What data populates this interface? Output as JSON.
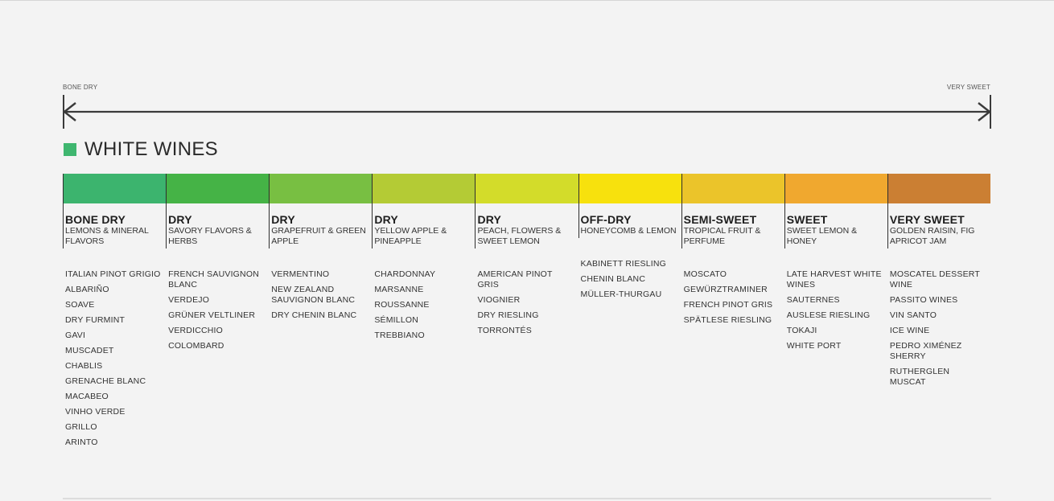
{
  "scale": {
    "left_label": "BONE DRY",
    "right_label": "VERY SWEET"
  },
  "legend": {
    "label": "WHITE WINES",
    "color": "#3fb66f"
  },
  "columns": [
    {
      "level": "BONE DRY",
      "flavor": "LEMONS & MINERAL FLAVORS",
      "color": "#3cb46e",
      "wines": [
        "ITALIAN PINOT GRIGIO",
        "ALBARIÑO",
        "SOAVE",
        "DRY FURMINT",
        "GAVI",
        "MUSCADET",
        "CHABLIS",
        "GRENACHE BLANC",
        "MACABEO",
        "VINHO VERDE",
        "GRILLO",
        "ARINTO"
      ]
    },
    {
      "level": "DRY",
      "flavor": "SAVORY FLAVORS & HERBS",
      "color": "#45b346",
      "wines": [
        "FRENCH SAUVIGNON BLANC",
        "VERDEJO",
        "GRÜNER VELTLINER",
        "VERDICCHIO",
        "COLOMBARD"
      ]
    },
    {
      "level": "DRY",
      "flavor": "GRAPEFRUIT & GREEN APPLE",
      "color": "#78bf42",
      "wines": [
        "VERMENTINO",
        "NEW ZEALAND SAUVIGNON BLANC",
        "DRY CHENIN BLANC"
      ]
    },
    {
      "level": "DRY",
      "flavor": "YELLOW APPLE & PINEAPPLE",
      "color": "#b4cb35",
      "wines": [
        "CHARDONNAY",
        "MARSANNE",
        "ROUSSANNE",
        "SÉMILLON",
        "TREBBIANO"
      ]
    },
    {
      "level": "DRY",
      "flavor": "PEACH, FLOWERS & SWEET LEMON",
      "color": "#d3dc2a",
      "wines": [
        "AMERICAN PINOT GRIS",
        "VIOGNIER",
        "DRY RIESLING",
        "TORRONTÉS"
      ]
    },
    {
      "level": "OFF-DRY",
      "flavor": "HONEYCOMB & LEMON",
      "color": "#f7e10d",
      "wines": [
        "KABINETT RIESLING",
        "CHENIN BLANC",
        "MÜLLER-THURGAU"
      ]
    },
    {
      "level": "SEMI-SWEET",
      "flavor": "TROPICAL FRUIT & PERFUME",
      "color": "#ebc42a",
      "wines": [
        "MOSCATO",
        "GEWÜRZTRAMINER",
        "FRENCH PINOT GRIS",
        "SPÄTLESE RIESLING"
      ]
    },
    {
      "level": "SWEET",
      "flavor": "SWEET LEMON & HONEY",
      "color": "#f0a82f",
      "wines": [
        "LATE HARVEST WHITE WINES",
        "SAUTERNES",
        "AUSLESE RIESLING",
        "TOKAJI",
        "WHITE PORT"
      ]
    },
    {
      "level": "VERY SWEET",
      "flavor": "GOLDEN RAISIN, FIG APRICOT JAM",
      "color": "#cb7f33",
      "wines": [
        "MOSCATEL DESSERT WINE",
        "PASSITO WINES",
        "VIN SANTO",
        "ICE WINE",
        "PEDRO XIMÉNEZ SHERRY",
        "RUTHERGLEN MUSCAT"
      ]
    }
  ]
}
